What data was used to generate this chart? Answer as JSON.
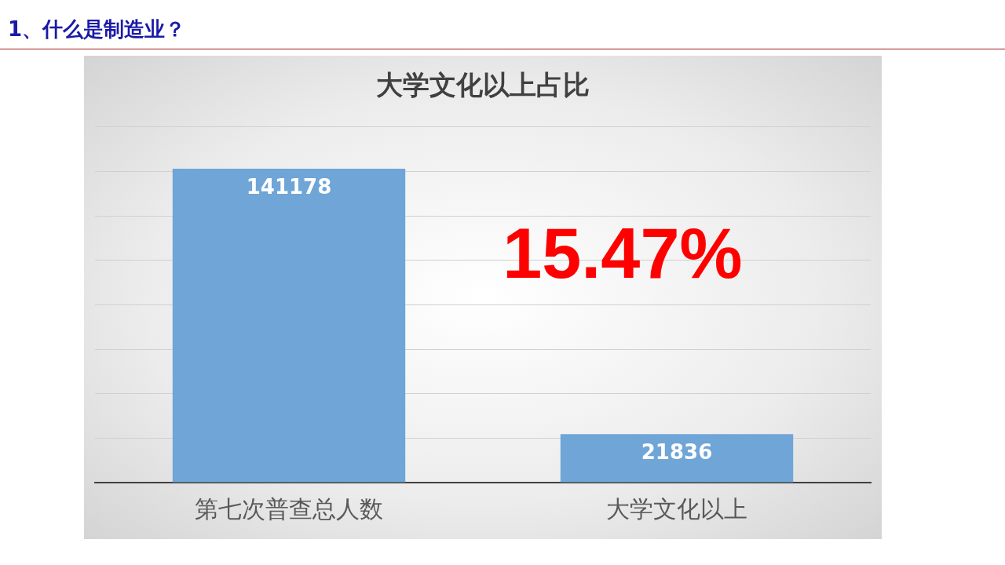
{
  "chart_data": {
    "type": "bar",
    "title": "1、什么是制造业？",
    "subtitle": "大学文化以上占比",
    "categories": [
      "第七次普查总人数",
      "大学文化以上"
    ],
    "values": [
      141178,
      21836
    ],
    "color": "#6fa5d7",
    "ylim": [
      0,
      160000
    ],
    "yticks": [
      {
        "value": 0,
        "label": null
      },
      {
        "value": 20000,
        "label": null
      },
      {
        "value": 40000,
        "label": null
      },
      {
        "value": 60000,
        "label": null
      },
      {
        "value": 80000,
        "label": null
      },
      {
        "value": 100000,
        "label": null
      },
      {
        "value": 120000,
        "label": null
      },
      {
        "value": 140000,
        "label": null
      },
      {
        "value": 160000,
        "label": null
      }
    ],
    "grid": "y",
    "tick_labels": "x",
    "data_labels": true,
    "legend": false,
    "annotations": [
      "15.47%"
    ]
  }
}
